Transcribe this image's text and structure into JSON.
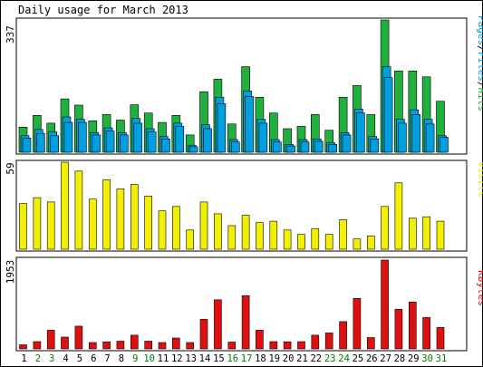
{
  "title": "Daily usage for March 2013",
  "panels": {
    "top": {
      "scale_label": "337",
      "side_label_parts": [
        {
          "text": "Pages",
          "color": "#00a0e0"
        },
        {
          "text": "/",
          "color": "#000000"
        },
        {
          "text": "Files",
          "color": "#00a0e0"
        },
        {
          "text": "/",
          "color": "#000000"
        },
        {
          "text": "Hits",
          "color": "#20b040"
        }
      ]
    },
    "middle": {
      "scale_label": "59",
      "side_label": "Visits"
    },
    "bottom": {
      "scale_label": "1953",
      "side_label": "KBytes"
    }
  },
  "colors": {
    "hits": "#20b040",
    "files": "#00a0e0",
    "pages": "#2878c8",
    "visits": "#f0f000",
    "kbytes": "#e01010",
    "weekend_label": "#008000",
    "weekday_label": "#000000"
  },
  "chart_data": {
    "type": "bar",
    "title": "Daily usage for March 2013",
    "categories": [
      "1",
      "2",
      "3",
      "4",
      "5",
      "6",
      "7",
      "8",
      "9",
      "10",
      "11",
      "12",
      "13",
      "14",
      "15",
      "16",
      "17",
      "18",
      "19",
      "20",
      "21",
      "22",
      "23",
      "24",
      "25",
      "26",
      "27",
      "28",
      "29",
      "30",
      "31"
    ],
    "weekend_days": [
      "2",
      "3",
      "9",
      "10",
      "16",
      "17",
      "23",
      "24",
      "30",
      "31"
    ],
    "panels": [
      {
        "name": "Pages/Files/Hits",
        "ylim": [
          0,
          337
        ],
        "series": [
          {
            "name": "Hits",
            "values": [
              64,
              94,
              74,
              136,
              120,
              80,
              96,
              82,
              121,
              100,
              76,
              94,
              44,
              154,
              186,
              72,
              218,
              140,
              100,
              60,
              66,
              96,
              56,
              140,
              170,
              96,
              337,
              207,
              207,
              192,
              130
            ]
          },
          {
            "name": "Files",
            "values": [
              42,
              58,
              52,
              90,
              84,
              50,
              62,
              50,
              86,
              60,
              40,
              74,
              18,
              70,
              140,
              32,
              156,
              84,
              32,
              20,
              32,
              34,
              24,
              50,
              110,
              40,
              218,
              84,
              108,
              84,
              42
            ]
          },
          {
            "name": "Pages",
            "values": [
              36,
              48,
              42,
              76,
              76,
              44,
              54,
              44,
              74,
              52,
              34,
              66,
              14,
              60,
              124,
              26,
              142,
              74,
              26,
              16,
              26,
              28,
              20,
              44,
              100,
              34,
              190,
              74,
              96,
              72,
              38
            ]
          }
        ]
      },
      {
        "name": "Visits",
        "ylim": [
          0,
          59
        ],
        "series": [
          {
            "name": "Visits",
            "values": [
              31,
              35,
              32,
              59,
              53,
              34,
              47,
              41,
              44,
              36,
              26,
              29,
              13,
              32,
              24,
              16,
              23,
              18,
              19,
              13,
              10,
              14,
              10,
              20,
              7,
              9,
              29,
              45,
              21,
              22,
              19
            ]
          }
        ]
      },
      {
        "name": "KBytes",
        "ylim": [
          0,
          1953
        ],
        "series": [
          {
            "name": "KBytes",
            "values": [
              90,
              160,
              410,
              260,
              500,
              140,
              155,
              170,
              300,
              170,
              140,
              240,
              140,
              650,
              1080,
              150,
              1170,
              410,
              160,
              155,
              160,
              300,
              350,
              600,
              1110,
              250,
              1953,
              870,
              1030,
              690,
              470
            ]
          }
        ]
      }
    ]
  }
}
